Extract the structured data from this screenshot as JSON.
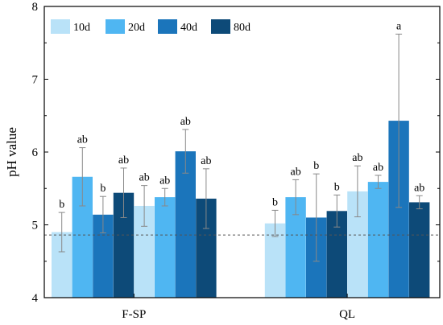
{
  "chart_data": {
    "type": "bar",
    "ylabel": "pH value",
    "xlabel": "",
    "ylim": [
      4,
      8
    ],
    "yticks": [
      4,
      5,
      6,
      7,
      8
    ],
    "legend_position": "top-left",
    "reference_line": 4.86,
    "colors": {
      "10d": "#b9e2f8",
      "20d": "#4fb6f2",
      "40d": "#1b75bb",
      "80d": "#0d4a78",
      "axis": "#000000",
      "error_bar": "#888888",
      "reference_line": "#555555"
    },
    "series": [
      {
        "name": "10d"
      },
      {
        "name": "20d"
      },
      {
        "name": "40d"
      },
      {
        "name": "80d"
      }
    ],
    "bars": [
      {
        "series": "10d",
        "value": 4.9,
        "error": 0.27,
        "label": "b"
      },
      {
        "series": "20d",
        "value": 5.66,
        "error": 0.4,
        "label": "ab"
      },
      {
        "series": "40d",
        "value": 5.14,
        "error": 0.25,
        "label": "b"
      },
      {
        "series": "80d",
        "value": 5.44,
        "error": 0.34,
        "label": "ab"
      },
      {
        "series": "10d",
        "value": 5.26,
        "error": 0.28,
        "label": "ab"
      },
      {
        "series": "20d",
        "value": 5.38,
        "error": 0.12,
        "label": "ab"
      },
      {
        "series": "40d",
        "value": 6.01,
        "error": 0.3,
        "label": "ab"
      },
      {
        "series": "80d",
        "value": 5.36,
        "error": 0.41,
        "label": "ab"
      },
      {
        "series": "10d",
        "value": 5.02,
        "error": 0.18,
        "label": "b"
      },
      {
        "series": "20d",
        "value": 5.38,
        "error": 0.24,
        "label": "ab"
      },
      {
        "series": "40d",
        "value": 5.1,
        "error": 0.6,
        "label": "b"
      },
      {
        "series": "80d",
        "value": 5.19,
        "error": 0.22,
        "label": "b"
      },
      {
        "series": "10d",
        "value": 5.46,
        "error": 0.35,
        "label": "ab"
      },
      {
        "series": "20d",
        "value": 5.59,
        "error": 0.09,
        "label": "ab"
      },
      {
        "series": "40d",
        "value": 6.43,
        "error": 1.19,
        "label": "a"
      },
      {
        "series": "80d",
        "value": 5.31,
        "error": 0.09,
        "label": "ab"
      }
    ],
    "categories": [
      "F-SP",
      "QL"
    ]
  }
}
